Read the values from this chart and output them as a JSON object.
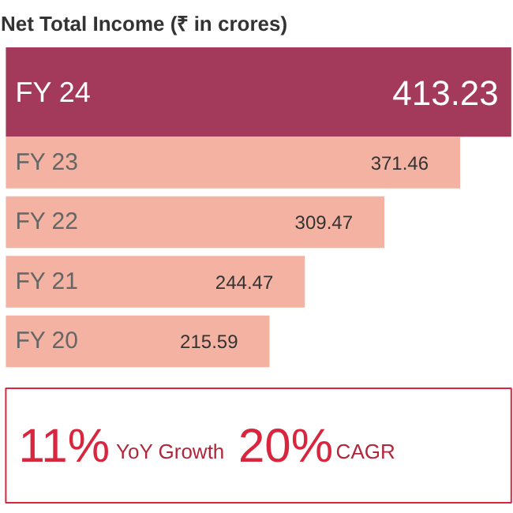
{
  "chart_data": {
    "type": "bar",
    "orientation": "horizontal",
    "tick_labels": false,
    "title": "Net Total Income (₹ in crores)",
    "categories": [
      "FY 24",
      "FY 23",
      "FY 22",
      "FY 21",
      "FY 20"
    ],
    "values": [
      413.23,
      371.46,
      309.47,
      244.47,
      215.59
    ],
    "colors": [
      "#a33a5c",
      "#f4b2a2",
      "#f4b2a2",
      "#f4b2a2",
      "#f4b2a2"
    ],
    "data_labels": true,
    "annotations": [
      "11%",
      "YoY Growth",
      "20%",
      "CAGR"
    ]
  }
}
